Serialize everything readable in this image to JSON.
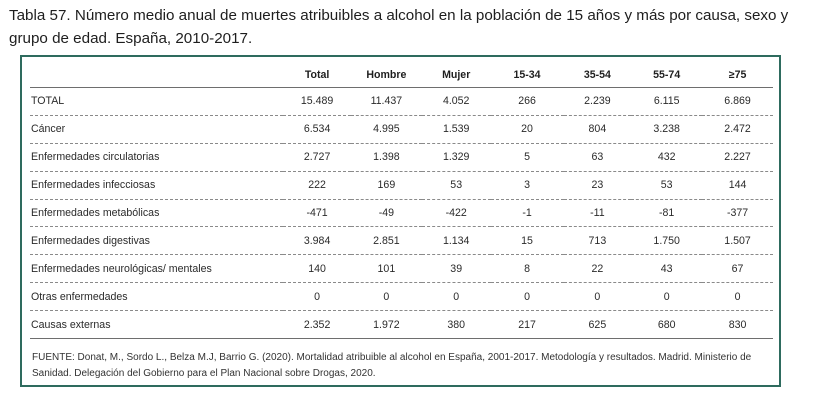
{
  "caption": "Tabla 57. Número medio anual de muertes atribuibles a alcohol en la población de 15 años y más por causa, sexo y grupo de edad. España, 2010-2017.",
  "table": {
    "headers": [
      "",
      "Total",
      "Hombre",
      "Mujer",
      "15-34",
      "35-54",
      "55-74",
      "≥75"
    ],
    "rows": [
      [
        "TOTAL",
        "15.489",
        "11.437",
        "4.052",
        "266",
        "2.239",
        "6.115",
        "6.869"
      ],
      [
        "Cáncer",
        "6.534",
        "4.995",
        "1.539",
        "20",
        "804",
        "3.238",
        "2.472"
      ],
      [
        "Enfermedades circulatorias",
        "2.727",
        "1.398",
        "1.329",
        "5",
        "63",
        "432",
        "2.227"
      ],
      [
        "Enfermedades infecciosas",
        "222",
        "169",
        "53",
        "3",
        "23",
        "53",
        "144"
      ],
      [
        "Enfermedades metabólicas",
        "-471",
        "-49",
        "-422",
        "-1",
        "-11",
        "-81",
        "-377"
      ],
      [
        "Enfermedades digestivas",
        "3.984",
        "2.851",
        "1.134",
        "15",
        "713",
        "1.750",
        "1.507"
      ],
      [
        "Enfermedades neurológicas/ mentales",
        "140",
        "101",
        "39",
        "8",
        "22",
        "43",
        "67"
      ],
      [
        "Otras enfermedades",
        "0",
        "0",
        "0",
        "0",
        "0",
        "0",
        "0"
      ],
      [
        "Causas externas",
        "2.352",
        "1.972",
        "380",
        "217",
        "625",
        "680",
        "830"
      ]
    ]
  },
  "source": "FUENTE: Donat, M., Sordo L., Belza M.J, Barrio G. (2020). Mortalidad atribuible al alcohol en España, 2001-2017. Metodología y resultados. Madrid. Ministerio de Sanidad. Delegación del Gobierno para el Plan Nacional sobre Drogas, 2020."
}
